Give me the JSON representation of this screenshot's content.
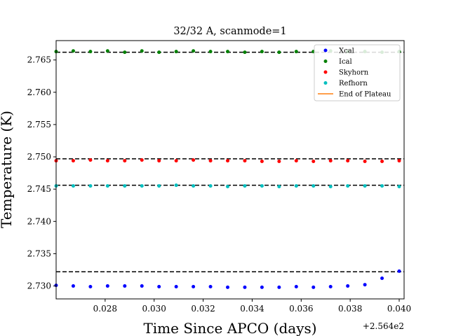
{
  "chart_data": {
    "type": "scatter",
    "title": "32/32 A, scanmode=1",
    "xlabel": "Time Since APCO (days)",
    "ylabel": "Temperature (K)",
    "x_offset_label": "+2.564e2",
    "xlim": [
      256.426,
      256.4402
    ],
    "ylim": [
      2.728,
      2.768
    ],
    "x_ticks": [
      256.428,
      256.43,
      256.432,
      256.434,
      256.436,
      256.438,
      256.44
    ],
    "x_tick_labels": [
      "0.028",
      "0.030",
      "0.032",
      "0.034",
      "0.036",
      "0.038",
      "0.040"
    ],
    "y_ticks": [
      2.73,
      2.735,
      2.74,
      2.745,
      2.75,
      2.755,
      2.76,
      2.765
    ],
    "y_tick_labels": [
      "2.730",
      "2.735",
      "2.740",
      "2.745",
      "2.750",
      "2.755",
      "2.760",
      "2.765"
    ],
    "x": [
      256.426,
      256.4267,
      256.4274,
      256.4281,
      256.4288,
      256.4295,
      256.4302,
      256.4309,
      256.4316,
      256.4323,
      256.433,
      256.4337,
      256.4344,
      256.4351,
      256.4358,
      256.4365,
      256.4372,
      256.4379,
      256.4386,
      256.4393,
      256.44
    ],
    "legend_position": "upper right",
    "series": [
      {
        "name": "Xcal",
        "color": "#0000ff",
        "y": [
          2.7301,
          2.73,
          2.7299,
          2.73,
          2.73,
          2.73,
          2.7299,
          2.7299,
          2.7299,
          2.7299,
          2.7298,
          2.7298,
          2.7298,
          2.7298,
          2.7299,
          2.7298,
          2.7299,
          2.73,
          2.7302,
          2.7312,
          2.7323
        ],
        "x_tail": [
          256.426,
          256.4267,
          256.4274,
          256.4281,
          256.4288,
          256.4295,
          256.4302,
          256.4309,
          256.4316,
          256.4323,
          256.433,
          256.4337,
          256.4344,
          256.4351,
          256.4358,
          256.4365,
          256.4372,
          256.4379,
          256.4386,
          256.4393,
          256.44
        ]
      },
      {
        "name": "Ical",
        "color": "#008000",
        "y": [
          2.7663,
          2.7664,
          2.7663,
          2.7664,
          2.7662,
          2.7664,
          2.7662,
          2.7663,
          2.7664,
          2.7663,
          2.7663,
          2.7662,
          2.7663,
          2.7662,
          2.7663,
          2.7663,
          2.7664,
          2.7663,
          2.7663,
          2.7662,
          2.7663
        ]
      },
      {
        "name": "Skyhorn",
        "color": "#ff0000",
        "y": [
          2.7494,
          2.7494,
          2.7495,
          2.7494,
          2.7494,
          2.7495,
          2.7494,
          2.7494,
          2.7495,
          2.7494,
          2.7494,
          2.7494,
          2.7493,
          2.7493,
          2.7494,
          2.7493,
          2.7494,
          2.7494,
          2.7493,
          2.7493,
          2.7494
        ]
      },
      {
        "name": "Refhorn",
        "color": "#00bfbf",
        "y": [
          2.7455,
          2.7455,
          2.7455,
          2.7455,
          2.7455,
          2.7455,
          2.7455,
          2.7456,
          2.7455,
          2.7455,
          2.7454,
          2.7455,
          2.7455,
          2.7454,
          2.7455,
          2.7455,
          2.7454,
          2.7455,
          2.7455,
          2.7455,
          2.7454
        ]
      }
    ],
    "plateau_lines": [
      2.7662,
      2.7497,
      2.7456,
      2.7322
    ],
    "end_of_plateau": {
      "name": "End of Plateau",
      "color": "#ff7f0e"
    }
  }
}
